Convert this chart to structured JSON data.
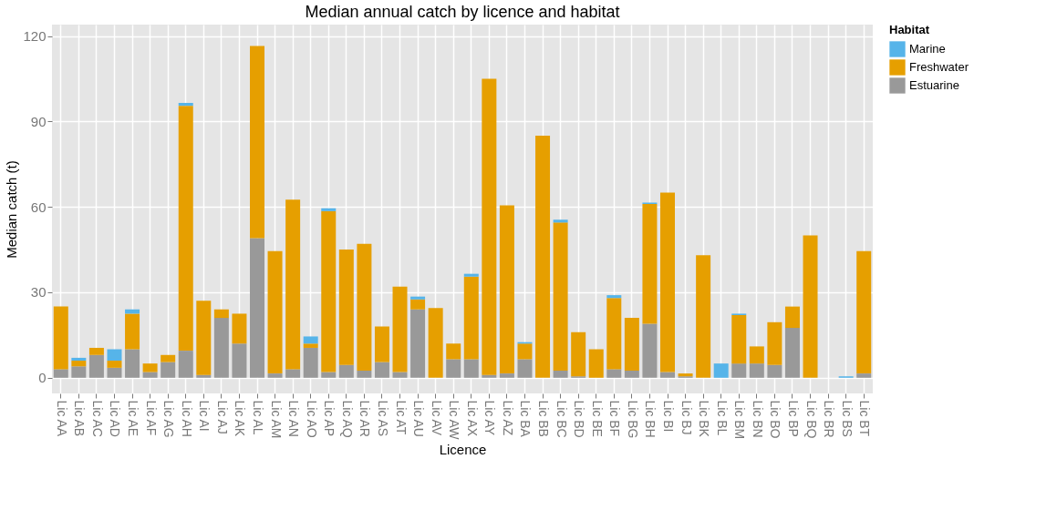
{
  "chart_data": {
    "type": "bar",
    "title": "Median annual catch by licence and habitat",
    "xlabel": "Licence",
    "ylabel": "Median catch (t)",
    "legend_title": "Habitat",
    "stacked": true,
    "legend": "right",
    "grid": true,
    "categories": [
      "Lic AA",
      "Lic AB",
      "Lic AC",
      "Lic AD",
      "Lic AE",
      "Lic AF",
      "Lic AG",
      "Lic AH",
      "Lic AI",
      "Lic AJ",
      "Lic AK",
      "Lic AL",
      "Lic AM",
      "Lic AN",
      "Lic AO",
      "Lic AP",
      "Lic AQ",
      "Lic AR",
      "Lic AS",
      "Lic AT",
      "Lic AU",
      "Lic AV",
      "Lic AW",
      "Lic AX",
      "Lic AY",
      "Lic AZ",
      "Lic BA",
      "Lic BB",
      "Lic BC",
      "Lic BD",
      "Lic BE",
      "Lic BF",
      "Lic BG",
      "Lic BH",
      "Lic BI",
      "Lic BJ",
      "Lic BK",
      "Lic BL",
      "Lic BM",
      "Lic BN",
      "Lic BO",
      "Lic BP",
      "Lic BQ",
      "Lic BR",
      "Lic BS",
      "Lic BT"
    ],
    "ylim": [
      -5.5,
      124
    ],
    "yticks": [
      0,
      30,
      60,
      90,
      120
    ],
    "series": [
      {
        "name": "Estuarine",
        "color": "#999999",
        "values": [
          3,
          4,
          8,
          3.5,
          10,
          2,
          5.5,
          9.5,
          1,
          21,
          12,
          49,
          1.5,
          3,
          10.5,
          2,
          4.5,
          2.5,
          5.5,
          2,
          24,
          null,
          6.5,
          6.5,
          1,
          1.5,
          6.5,
          null,
          2.5,
          0.5,
          null,
          3,
          2.5,
          19,
          2,
          0.5,
          null,
          null,
          5,
          5,
          4.5,
          17.5,
          null,
          null,
          null,
          1.5
        ]
      },
      {
        "name": "Freshwater",
        "color": "#e69f00",
        "values": [
          22,
          2,
          2.5,
          2.5,
          12.5,
          3,
          2.5,
          86,
          26,
          3,
          10.5,
          67.5,
          43,
          59.5,
          1.5,
          56.5,
          40.5,
          44.5,
          12.5,
          30,
          3.5,
          24.5,
          5.5,
          29,
          104,
          59,
          5.5,
          85,
          52,
          15.5,
          10,
          25,
          18.5,
          42,
          63,
          1,
          43,
          null,
          17,
          6,
          15,
          7.5,
          50,
          null,
          null,
          43
        ]
      },
      {
        "name": "Marine",
        "color": "#56b4e9",
        "values": [
          null,
          1,
          null,
          4,
          1.5,
          null,
          null,
          1,
          null,
          null,
          null,
          null,
          null,
          null,
          2.5,
          1,
          null,
          null,
          null,
          null,
          1,
          null,
          null,
          1,
          null,
          null,
          0.5,
          null,
          1,
          null,
          null,
          1,
          null,
          0.5,
          null,
          null,
          null,
          5,
          0.5,
          null,
          null,
          null,
          null,
          null,
          0.5,
          null
        ]
      }
    ]
  }
}
